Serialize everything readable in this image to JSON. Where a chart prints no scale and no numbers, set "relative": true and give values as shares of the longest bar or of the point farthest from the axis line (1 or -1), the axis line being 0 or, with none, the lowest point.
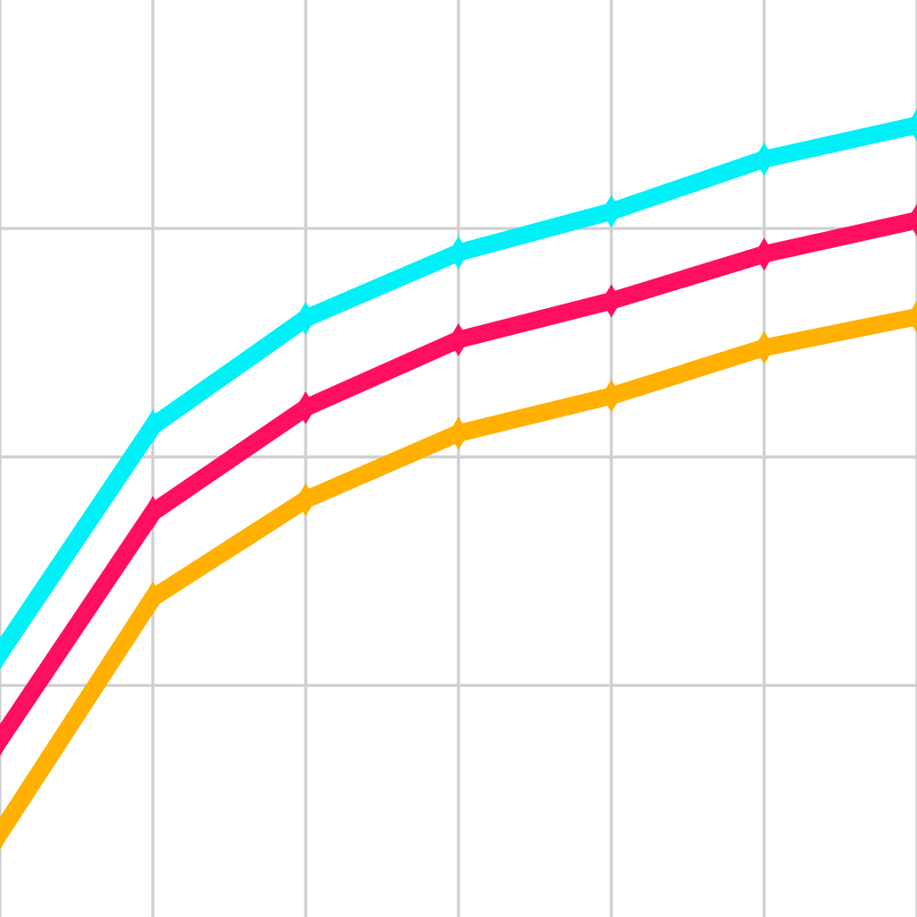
{
  "chart_data": {
    "type": "line",
    "relative": true,
    "categories": [
      null,
      null,
      null,
      null,
      null,
      null,
      null
    ],
    "grid": true,
    "marker": "diamond",
    "line_style": "solid",
    "series": [
      {
        "color": "#00f0f8",
        "values": [
          0.333,
          0.62,
          0.756,
          0.839,
          0.891,
          0.957,
          1.0
        ]
      },
      {
        "color": "#ff0f5f",
        "values": [
          0.224,
          0.511,
          0.643,
          0.729,
          0.778,
          0.837,
          0.88
        ]
      },
      {
        "color": "#ffb000",
        "values": [
          0.106,
          0.403,
          0.527,
          0.611,
          0.658,
          0.719,
          0.758
        ]
      }
    ]
  }
}
